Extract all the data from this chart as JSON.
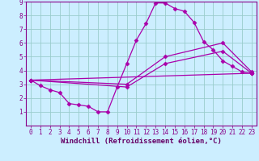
{
  "xlabel": "Windchill (Refroidissement éolien,°C)",
  "ylabel": "",
  "xlim": [
    -0.5,
    23.5
  ],
  "ylim": [
    0,
    9
  ],
  "xticks": [
    0,
    1,
    2,
    3,
    4,
    5,
    6,
    7,
    8,
    9,
    10,
    11,
    12,
    13,
    14,
    15,
    16,
    17,
    18,
    19,
    20,
    21,
    22,
    23
  ],
  "yticks": [
    1,
    2,
    3,
    4,
    5,
    6,
    7,
    8,
    9
  ],
  "bg_color": "#cceeff",
  "line_color": "#aa00aa",
  "grid_color": "#99cccc",
  "lines": [
    {
      "x": [
        0,
        1,
        2,
        3,
        4,
        5,
        6,
        7,
        8,
        9,
        10,
        11,
        12,
        13,
        14,
        15,
        16,
        17,
        18,
        19,
        20,
        21,
        22,
        23
      ],
      "y": [
        3.3,
        2.9,
        2.6,
        2.4,
        1.6,
        1.5,
        1.4,
        1.0,
        1.0,
        2.8,
        4.5,
        6.2,
        7.4,
        8.9,
        8.9,
        8.5,
        8.3,
        7.5,
        6.1,
        5.5,
        4.7,
        4.3,
        3.9,
        3.8
      ]
    },
    {
      "x": [
        0,
        10,
        14,
        20,
        23
      ],
      "y": [
        3.3,
        3.0,
        5.0,
        6.0,
        3.9
      ]
    },
    {
      "x": [
        0,
        10,
        14,
        20,
        23
      ],
      "y": [
        3.3,
        2.8,
        4.5,
        5.4,
        3.8
      ]
    },
    {
      "x": [
        0,
        23
      ],
      "y": [
        3.3,
        3.8
      ]
    }
  ],
  "marker": "D",
  "markersize": 2.5,
  "linewidth": 0.9,
  "tick_fontsize": 5.5,
  "label_fontsize": 6.5,
  "tick_color": "#880088",
  "label_color": "#660066",
  "spine_color": "#880088"
}
